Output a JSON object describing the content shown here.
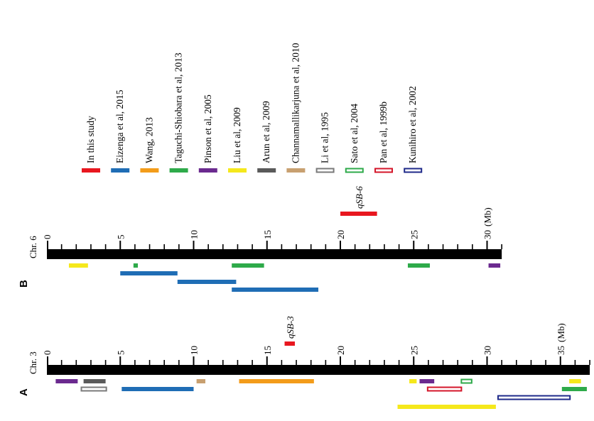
{
  "legend": [
    {
      "label": "In this study",
      "color": "#e8171f",
      "style": "filled"
    },
    {
      "label": "Eizenga et al, 2015",
      "color": "#1f6db5",
      "style": "filled"
    },
    {
      "label": "Wang, 2013",
      "color": "#f39c1a",
      "style": "filled"
    },
    {
      "label": "Taguchi-Shiobara et al, 2013",
      "color": "#2eaa4a",
      "style": "filled"
    },
    {
      "label": "Pinson et al, 2005",
      "color": "#6b2a8f",
      "style": "filled"
    },
    {
      "label": "Liu et al, 2009",
      "color": "#f5e81c",
      "style": "filled"
    },
    {
      "label": "Arun et al, 2009",
      "color": "#5a5a5a",
      "style": "filled"
    },
    {
      "label": "Channamallikarjuna et al, 2010",
      "color": "#c8a070",
      "style": "filled"
    },
    {
      "label": "Li et al, 1995",
      "color": "#7a7a7a",
      "style": "outline"
    },
    {
      "label": "Sato et al, 2004",
      "color": "#2eaa4a",
      "style": "outline"
    },
    {
      "label": "Pan et al, 1999b",
      "color": "#d4162a",
      "style": "outline"
    },
    {
      "label": "Kunihiro et al, 2002",
      "color": "#1f2a8a",
      "style": "outline"
    }
  ],
  "panels": [
    {
      "panel_label": "B",
      "chr_label": "Chr. 6",
      "unit_label": "(Mb)",
      "tick_labels": [
        "0",
        "5",
        "10",
        "15",
        "20",
        "25",
        "30"
      ],
      "length_mb": 31,
      "qtl_label": "qSB-6",
      "qtl": {
        "start": 20,
        "end": 22.5,
        "ref": 0
      },
      "intervals": [
        {
          "ref": 5,
          "start": 1.5,
          "end": 2.8,
          "row": 0
        },
        {
          "ref": 3,
          "start": 5.9,
          "end": 6.2,
          "row": 0
        },
        {
          "ref": 3,
          "start": 12.6,
          "end": 14.8,
          "row": 0
        },
        {
          "ref": 3,
          "start": 24.6,
          "end": 26.1,
          "row": 0
        },
        {
          "ref": 4,
          "start": 30.1,
          "end": 30.9,
          "row": 0
        },
        {
          "ref": 1,
          "start": 5,
          "end": 8.9,
          "row": 1
        },
        {
          "ref": 1,
          "start": 8.9,
          "end": 12.9,
          "row": 2
        },
        {
          "ref": 1,
          "start": 12.6,
          "end": 18.5,
          "row": 3
        }
      ]
    },
    {
      "panel_label": "A",
      "chr_label": "Chr. 3",
      "unit_label": "(Mb)",
      "tick_labels": [
        "0",
        "5",
        "10",
        "15",
        "20",
        "25",
        "30",
        "35"
      ],
      "length_mb": 37,
      "qtl_label": "qSB-3",
      "qtl": {
        "start": 16.2,
        "end": 16.9,
        "ref": 0
      },
      "intervals": [
        {
          "ref": 4,
          "start": 0.6,
          "end": 2.1,
          "row": 0
        },
        {
          "ref": 6,
          "start": 2.5,
          "end": 4,
          "row": 0
        },
        {
          "ref": 7,
          "start": 10.2,
          "end": 10.8,
          "row": 0
        },
        {
          "ref": 2,
          "start": 13.1,
          "end": 18.2,
          "row": 0
        },
        {
          "ref": 5,
          "start": 24.7,
          "end": 25.2,
          "row": 0
        },
        {
          "ref": 4,
          "start": 25.4,
          "end": 26.4,
          "row": 0
        },
        {
          "ref": 9,
          "start": 28.2,
          "end": 29,
          "row": 0
        },
        {
          "ref": 5,
          "start": 35.6,
          "end": 36.4,
          "row": 0
        },
        {
          "ref": 8,
          "start": 2.3,
          "end": 4.1,
          "row": 1
        },
        {
          "ref": 1,
          "start": 5.1,
          "end": 10,
          "row": 1
        },
        {
          "ref": 10,
          "start": 25.9,
          "end": 28.3,
          "row": 1
        },
        {
          "ref": 3,
          "start": 35.1,
          "end": 36.8,
          "row": 1
        },
        {
          "ref": 11,
          "start": 30.7,
          "end": 35.7,
          "row": 2
        },
        {
          "ref": 5,
          "start": 23.9,
          "end": 30.6,
          "row": 3
        }
      ]
    }
  ]
}
